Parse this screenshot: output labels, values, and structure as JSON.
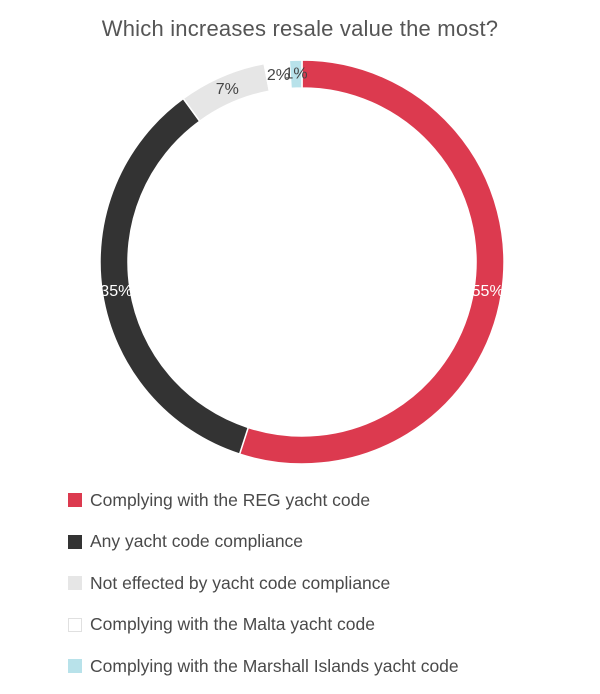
{
  "chart_data": {
    "type": "pie",
    "subtype": "donut",
    "title": "Which increases resale value the most?",
    "categories": [
      "Complying with the REG yacht code",
      "Any yacht code compliance",
      "Not effected by yacht code compliance",
      "Complying with the Malta yacht code",
      "Complying with the Marshall Islands yacht code"
    ],
    "values": [
      55,
      35,
      7,
      2,
      1
    ],
    "value_labels": [
      "55%",
      "35%",
      "7%",
      "2%",
      "1%"
    ],
    "unit": "%",
    "colors": [
      "#dc3a4f",
      "#333333",
      "#e6e6e6",
      "#ffffff",
      "#b8e2ea"
    ],
    "label_colors": [
      "#ffffff",
      "#ffffff",
      "#444444",
      "#444444",
      "#444444"
    ],
    "legend_position": "bottom",
    "start": "top",
    "direction": "clockwise"
  }
}
